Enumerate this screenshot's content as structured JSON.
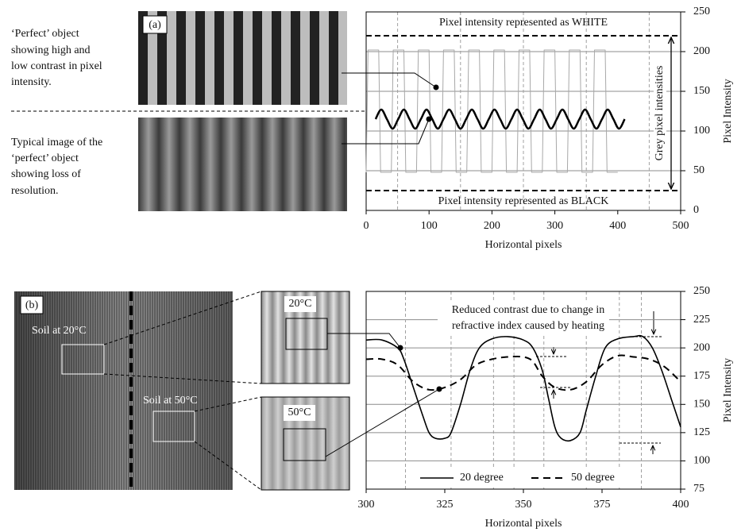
{
  "chart_data": [
    {
      "type": "line",
      "panel_label": "(a)",
      "captions": [
        [
          "‘Perfect’ object",
          "showing high and",
          "low contrast in pixel",
          "intensity."
        ],
        [
          "Typical image of the",
          "‘perfect’ object",
          "showing  loss of",
          "resolution."
        ]
      ],
      "xlabel": "Horizontal pixels",
      "ylabel": "Pixel Intensity",
      "xlim": [
        0,
        500
      ],
      "xticks": [
        0,
        100,
        200,
        300,
        400,
        500
      ],
      "ylim": [
        0,
        250
      ],
      "yticks": [
        0,
        50,
        100,
        150,
        200,
        250
      ],
      "grid": true,
      "vgrid": [
        50,
        150,
        250,
        350,
        450
      ],
      "hlines": [
        {
          "value": 220,
          "label": "Pixel intensity represented as WHITE"
        },
        {
          "value": 25,
          "label": "Pixel intensity represented as BLACK"
        }
      ],
      "bracket_label": "Grey pixel intensities",
      "series": [
        {
          "color": "#a8a8a8",
          "width": 1,
          "smooth": false,
          "x": [
            0,
            3,
            20,
            23,
            40,
            43,
            60,
            63,
            80,
            83,
            100,
            103,
            120,
            123,
            140,
            143,
            160,
            163,
            180,
            183,
            200,
            203,
            220,
            223,
            240,
            243,
            260,
            263,
            280,
            283,
            300,
            303,
            320,
            323,
            340,
            343,
            360,
            363,
            380,
            383,
            400
          ],
          "values": [
            48,
            202,
            202,
            48,
            48,
            202,
            202,
            48,
            48,
            202,
            202,
            48,
            48,
            202,
            202,
            48,
            48,
            202,
            202,
            48,
            48,
            202,
            202,
            48,
            48,
            202,
            202,
            48,
            48,
            202,
            202,
            48,
            48,
            202,
            202,
            48,
            48,
            202,
            202,
            48,
            48
          ]
        },
        {
          "color": "#000000",
          "width": 2.5,
          "smooth": true,
          "x": [
            15,
            24,
            33,
            42,
            51,
            60,
            69,
            78,
            87,
            96,
            105,
            114,
            123,
            132,
            141,
            150,
            159,
            168,
            177,
            186,
            195,
            204,
            213,
            222,
            231,
            240,
            249,
            258,
            267,
            276,
            285,
            294,
            303,
            312,
            321,
            330,
            339,
            348,
            357,
            366,
            375,
            384,
            393,
            402,
            411
          ],
          "values": [
            115,
            127,
            115,
            103,
            115,
            127,
            115,
            103,
            115,
            127,
            115,
            103,
            115,
            127,
            115,
            103,
            115,
            127,
            115,
            103,
            115,
            127,
            115,
            103,
            115,
            127,
            115,
            103,
            115,
            127,
            115,
            103,
            115,
            127,
            115,
            103,
            115,
            127,
            115,
            103,
            115,
            127,
            115,
            103,
            115
          ]
        }
      ]
    },
    {
      "type": "line",
      "panel_label": "(b)",
      "image_labels": [
        "Soil at 20°C",
        "Soil at 50°C",
        "20°C",
        "50°C"
      ],
      "annotation": [
        "Reduced contrast due to change in",
        "refractive index caused by heating"
      ],
      "xlabel": "Horizontal pixels",
      "ylabel": "Pixel Intensity",
      "xlim": [
        300,
        400
      ],
      "xticks": [
        300,
        325,
        350,
        375,
        400
      ],
      "ylim": [
        75,
        250
      ],
      "yticks": [
        75,
        100,
        125,
        150,
        175,
        200,
        225,
        250
      ],
      "grid": true,
      "vgrid": [
        312.5,
        327,
        340.5,
        347,
        356.5,
        370,
        380.5,
        387.5
      ],
      "legend": "lower center",
      "series": [
        {
          "name": "20 degree",
          "color": "#000000",
          "width": 1.6,
          "dash": false,
          "smooth": true,
          "x": [
            300,
            305,
            310,
            312,
            315,
            318,
            320,
            322,
            325,
            327,
            330,
            333,
            336,
            340,
            345,
            350,
            353,
            356,
            358,
            360,
            362,
            365,
            368,
            370,
            373,
            376,
            380,
            385,
            388,
            391,
            394,
            397,
            400
          ],
          "values": [
            207,
            207,
            200,
            190,
            165,
            140,
            125,
            120,
            120,
            125,
            150,
            180,
            200,
            208,
            210,
            207,
            200,
            180,
            155,
            130,
            120,
            118,
            125,
            145,
            175,
            200,
            208,
            210,
            210,
            200,
            180,
            155,
            130
          ]
        },
        {
          "name": "50 degree",
          "color": "#000000",
          "width": 2,
          "dash": true,
          "smooth": true,
          "x": [
            300,
            305,
            310,
            315,
            320,
            325,
            330,
            335,
            340,
            345,
            350,
            353,
            356,
            360,
            365,
            370,
            375,
            380,
            385,
            390,
            395,
            400
          ],
          "values": [
            190,
            190,
            185,
            170,
            163,
            165,
            172,
            185,
            190,
            192,
            192,
            188,
            175,
            165,
            163,
            170,
            185,
            193,
            192,
            190,
            183,
            170
          ]
        }
      ]
    }
  ]
}
